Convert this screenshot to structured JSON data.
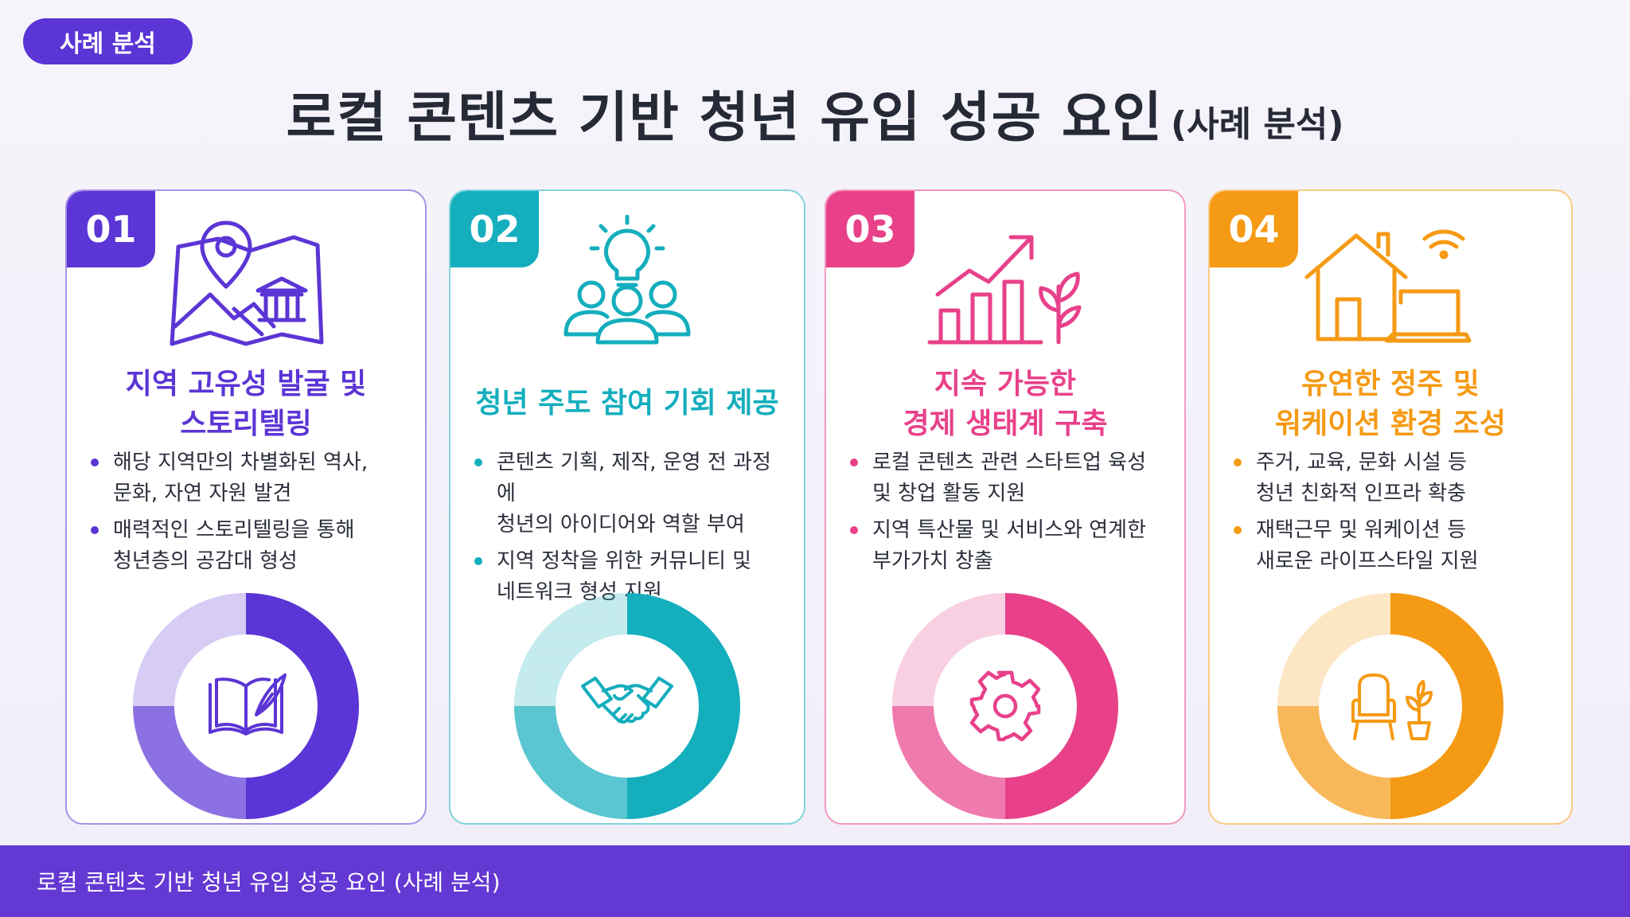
{
  "tag": "사례 분석",
  "title": {
    "main": "로컬 콘텐츠 기반 청년 유입 성공 요인",
    "sub": "(사례 분석)"
  },
  "cards": [
    {
      "number": "01",
      "color": "#5b35d5",
      "title_line1": "지역 고유성 발굴 및",
      "title_line2": "스토리텔링",
      "bullets": [
        {
          "line1": "해당 지역만의 차별화된 역사,",
          "line2": "문화, 자연 자원 발견"
        },
        {
          "line1": "매력적인 스토리텔링을 통해",
          "line2": "청년층의 공감대 형성"
        }
      ],
      "top_icon": "map-pin-museum-icon",
      "center_icon": "book-quill-icon",
      "ring_segments": [
        0.5,
        0.25,
        0.25
      ]
    },
    {
      "number": "02",
      "color": "#14aebd",
      "title_line1": "청년 주도 참여 기회 제공",
      "title_line2": "",
      "bullets": [
        {
          "line1": "콘텐츠 기획, 제작, 운영 전 과정에",
          "line2": "청년의 아이디어와 역할 부여"
        },
        {
          "line1": "지역 정착을 위한 커뮤니티 및",
          "line2": "네트워크 형성 지원"
        }
      ],
      "top_icon": "people-lightbulb-icon",
      "center_icon": "handshake-icon",
      "ring_segments": [
        0.5,
        0.25,
        0.25
      ]
    },
    {
      "number": "03",
      "color": "#e8418a",
      "title_line1": "지속 가능한",
      "title_line2": "경제 생태계 구축",
      "bullets": [
        {
          "line1": "로컬 콘텐츠 관련 스타트업 육성",
          "line2": "및 창업 활동 지원"
        },
        {
          "line1": "지역 특산물 및 서비스와 연계한",
          "line2": "부가가치 창출"
        }
      ],
      "top_icon": "growth-chart-plant-icon",
      "center_icon": "gear-icon",
      "ring_segments": [
        0.5,
        0.25,
        0.25
      ]
    },
    {
      "number": "04",
      "color": "#f59a14",
      "title_line1": "유연한 정주 및",
      "title_line2": "워케이션 환경 조성",
      "bullets": [
        {
          "line1": "주거, 교육, 문화 시설 등",
          "line2": "청년 친화적 인프라 확충"
        },
        {
          "line1": "재택근무 및 워케이션 등",
          "line2": "새로운 라이프스타일 지원"
        }
      ],
      "top_icon": "house-laptop-wifi-icon",
      "center_icon": "armchair-plant-icon",
      "ring_segments": [
        0.5,
        0.25,
        0.25
      ]
    }
  ],
  "footer": "로컬 콘텐츠 기반 청년 유입 성공 요인 (사례 분석)"
}
